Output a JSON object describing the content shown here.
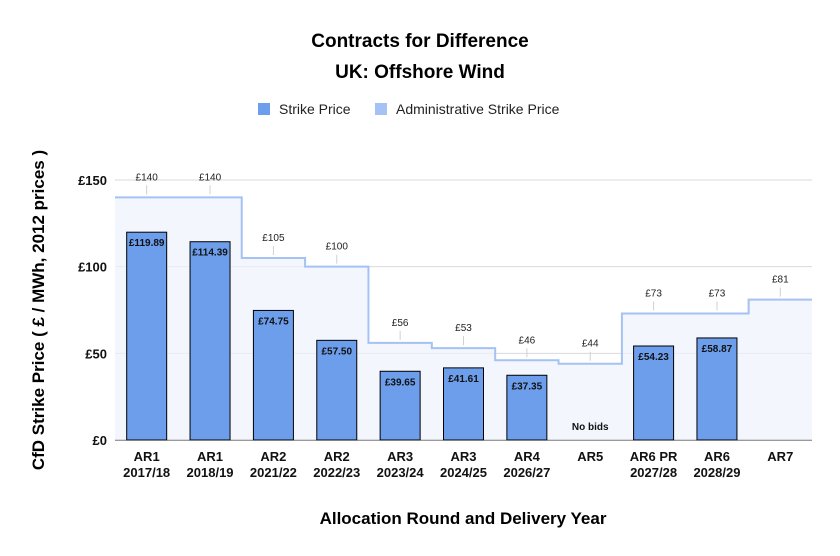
{
  "chart_data": {
    "type": "bar",
    "title": "Contracts for Difference",
    "subtitle": "UK: Offshore Wind",
    "xlabel": "Allocation Round and Delivery Year",
    "ylabel": "CfD Strike Price ( £ / MWh, 2012 prices )",
    "ylim": [
      0,
      150
    ],
    "yticks": [
      0,
      50,
      100,
      150
    ],
    "ytick_labels": [
      "£0",
      "£50",
      "£100",
      "£150"
    ],
    "grid": true,
    "legend_position": "top",
    "categories": [
      [
        "AR1",
        "2017/18"
      ],
      [
        "AR1",
        "2018/19"
      ],
      [
        "AR2",
        "2021/22"
      ],
      [
        "AR2",
        "2022/23"
      ],
      [
        "AR3",
        "2023/24"
      ],
      [
        "AR3",
        "2024/25"
      ],
      [
        "AR4",
        "2026/27"
      ],
      [
        "AR5",
        ""
      ],
      [
        "AR6 PR",
        "2027/28"
      ],
      [
        "AR6",
        "2028/29"
      ],
      [
        "AR7",
        ""
      ]
    ],
    "series": [
      {
        "name": "Strike Price",
        "type": "bar",
        "color": "#6d9eeb",
        "values": [
          119.89,
          114.39,
          74.75,
          57.5,
          39.65,
          41.61,
          37.35,
          null,
          54.23,
          58.87,
          null
        ],
        "labels": [
          "£119.89",
          "£114.39",
          "£74.75",
          "£57.50",
          "£39.65",
          "£41.61",
          "£37.35",
          "",
          "£54.23",
          "£58.87",
          ""
        ]
      },
      {
        "name": "Administrative Strike Price",
        "type": "step-area",
        "color": "#a4c2f4",
        "values": [
          140,
          140,
          105,
          100,
          56,
          53,
          46,
          44,
          73,
          73,
          81
        ],
        "labels": [
          "£140",
          "£140",
          "£105",
          "£100",
          "£56",
          "£53",
          "£46",
          "£44",
          "£73",
          "£73",
          "£81"
        ]
      }
    ],
    "annotations": [
      {
        "category_index": 7,
        "text": "No bids"
      }
    ]
  }
}
